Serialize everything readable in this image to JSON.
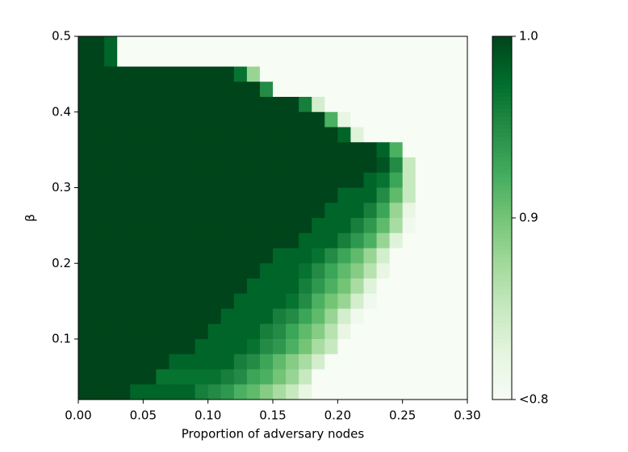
{
  "chart_data": {
    "type": "heatmap",
    "xlabel": "Proportion of adversary nodes",
    "ylabel": "β",
    "xlim": [
      0,
      0.3
    ],
    "ylim": [
      0.02,
      0.5
    ],
    "origin": "upper",
    "xticks": [
      {
        "value": 0,
        "label": "0.00"
      },
      0.05,
      {
        "value": 0.1,
        "label": "0.10"
      },
      0.15,
      {
        "value": 0.2,
        "label": "0.20"
      },
      0.25,
      {
        "value": 0.3,
        "label": "0.30"
      }
    ],
    "yticks": [
      0.1,
      0.2,
      0.3,
      0.4,
      0.5
    ],
    "clim": [
      0.8,
      1.0
    ],
    "cticks": [
      {
        "value": 1.0,
        "label": "1.0"
      },
      0.9,
      {
        "value": 0.8,
        "label": "<0.8"
      }
    ],
    "colormap": [
      "#f7fcf5",
      "#e5f5e0",
      "#c7e9c0",
      "#a1d99b",
      "#74c476",
      "#41ab5d",
      "#238b45",
      "#006d2c",
      "#00441b"
    ],
    "z": [
      [
        1,
        1,
        0.98,
        0.8,
        0.8,
        0.8,
        0.8,
        0.8,
        0.8,
        0.8,
        0.8,
        0.8,
        0.8,
        0.8,
        0.8,
        0.8,
        0.8,
        0.8,
        0.8,
        0.8,
        0.8,
        0.8,
        0.8,
        0.8,
        0.8,
        0.8,
        0.8,
        0.8,
        0.8,
        0.8
      ],
      [
        1,
        1,
        0.98,
        0.8,
        0.8,
        0.8,
        0.8,
        0.8,
        0.8,
        0.8,
        0.8,
        0.8,
        0.8,
        0.8,
        0.8,
        0.8,
        0.8,
        0.8,
        0.8,
        0.8,
        0.8,
        0.8,
        0.8,
        0.8,
        0.8,
        0.8,
        0.8,
        0.8,
        0.8,
        0.8
      ],
      [
        1,
        1,
        1,
        1,
        1,
        1,
        1,
        1,
        1,
        1,
        1,
        1,
        0.97,
        0.88,
        0.8,
        0.8,
        0.8,
        0.8,
        0.8,
        0.8,
        0.8,
        0.8,
        0.8,
        0.8,
        0.8,
        0.8,
        0.8,
        0.8,
        0.8,
        0.8
      ],
      [
        1,
        1,
        1,
        1,
        1,
        1,
        1,
        1,
        1,
        1,
        1,
        1,
        1,
        1,
        0.95,
        0.8,
        0.8,
        0.8,
        0.8,
        0.8,
        0.8,
        0.8,
        0.8,
        0.8,
        0.8,
        0.8,
        0.8,
        0.8,
        0.8,
        0.8
      ],
      [
        1,
        1,
        1,
        1,
        1,
        1,
        1,
        1,
        1,
        1,
        1,
        1,
        1,
        1,
        1,
        1,
        1,
        0.96,
        0.84,
        0.8,
        0.8,
        0.8,
        0.8,
        0.8,
        0.8,
        0.8,
        0.8,
        0.8,
        0.8,
        0.8
      ],
      [
        1,
        1,
        1,
        1,
        1,
        1,
        1,
        1,
        1,
        1,
        1,
        1,
        1,
        1,
        1,
        1,
        1,
        1,
        1,
        0.92,
        0.82,
        0.8,
        0.8,
        0.8,
        0.8,
        0.8,
        0.8,
        0.8,
        0.8,
        0.8
      ],
      [
        1,
        1,
        1,
        1,
        1,
        1,
        1,
        1,
        1,
        1,
        1,
        1,
        1,
        1,
        1,
        1,
        1,
        1,
        1,
        1,
        0.98,
        0.83,
        0.8,
        0.8,
        0.8,
        0.8,
        0.8,
        0.8,
        0.8,
        0.8
      ],
      [
        1,
        1,
        1,
        1,
        1,
        1,
        1,
        1,
        1,
        1,
        1,
        1,
        1,
        1,
        1,
        1,
        1,
        1,
        1,
        1,
        1,
        1,
        1,
        0.98,
        0.92,
        0.8,
        0.8,
        0.8,
        0.8,
        0.8
      ],
      [
        1,
        1,
        1,
        1,
        1,
        1,
        1,
        1,
        1,
        1,
        1,
        1,
        1,
        1,
        1,
        1,
        1,
        1,
        1,
        1,
        1,
        1,
        1,
        0.99,
        0.95,
        0.85,
        0.8,
        0.8,
        0.8,
        0.8
      ],
      [
        1,
        1,
        1,
        1,
        1,
        1,
        1,
        1,
        1,
        1,
        1,
        1,
        1,
        1,
        1,
        1,
        1,
        1,
        1,
        1,
        1,
        1,
        0.98,
        0.97,
        0.93,
        0.85,
        0.8,
        0.8,
        0.8,
        0.8
      ],
      [
        1,
        1,
        1,
        1,
        1,
        1,
        1,
        1,
        1,
        1,
        1,
        1,
        1,
        1,
        1,
        1,
        1,
        1,
        1,
        1,
        0.98,
        0.98,
        0.98,
        0.95,
        0.91,
        0.85,
        0.8,
        0.8,
        0.8,
        0.8
      ],
      [
        1,
        1,
        1,
        1,
        1,
        1,
        1,
        1,
        1,
        1,
        1,
        1,
        1,
        1,
        1,
        1,
        1,
        1,
        1,
        0.98,
        0.98,
        0.98,
        0.96,
        0.93,
        0.88,
        0.82,
        0.8,
        0.8,
        0.8,
        0.8
      ],
      [
        1,
        1,
        1,
        1,
        1,
        1,
        1,
        1,
        1,
        1,
        1,
        1,
        1,
        1,
        1,
        1,
        1,
        1,
        0.98,
        0.98,
        0.98,
        0.96,
        0.94,
        0.91,
        0.87,
        0.81,
        0.8,
        0.8,
        0.8,
        0.8
      ],
      [
        1,
        1,
        1,
        1,
        1,
        1,
        1,
        1,
        1,
        1,
        1,
        1,
        1,
        1,
        1,
        1,
        1,
        0.98,
        0.98,
        0.98,
        0.96,
        0.94,
        0.92,
        0.88,
        0.83,
        0.8,
        0.8,
        0.8,
        0.8,
        0.8
      ],
      [
        1,
        1,
        1,
        1,
        1,
        1,
        1,
        1,
        1,
        1,
        1,
        1,
        1,
        1,
        1,
        0.98,
        0.98,
        0.98,
        0.97,
        0.95,
        0.93,
        0.91,
        0.88,
        0.84,
        0.8,
        0.8,
        0.8,
        0.8,
        0.8,
        0.8
      ],
      [
        1,
        1,
        1,
        1,
        1,
        1,
        1,
        1,
        1,
        1,
        1,
        1,
        1,
        1,
        0.98,
        0.98,
        0.98,
        0.97,
        0.95,
        0.93,
        0.91,
        0.89,
        0.86,
        0.82,
        0.8,
        0.8,
        0.8,
        0.8,
        0.8,
        0.8
      ],
      [
        1,
        1,
        1,
        1,
        1,
        1,
        1,
        1,
        1,
        1,
        1,
        1,
        1,
        0.98,
        0.98,
        0.98,
        0.98,
        0.96,
        0.94,
        0.92,
        0.9,
        0.87,
        0.83,
        0.8,
        0.8,
        0.8,
        0.8,
        0.8,
        0.8,
        0.8
      ],
      [
        1,
        1,
        1,
        1,
        1,
        1,
        1,
        1,
        1,
        1,
        1,
        1,
        0.98,
        0.98,
        0.98,
        0.98,
        0.97,
        0.95,
        0.92,
        0.9,
        0.88,
        0.84,
        0.81,
        0.8,
        0.8,
        0.8,
        0.8,
        0.8,
        0.8,
        0.8
      ],
      [
        1,
        1,
        1,
        1,
        1,
        1,
        1,
        1,
        1,
        1,
        1,
        0.98,
        0.98,
        0.98,
        0.98,
        0.96,
        0.95,
        0.93,
        0.91,
        0.88,
        0.84,
        0.81,
        0.8,
        0.8,
        0.8,
        0.8,
        0.8,
        0.8,
        0.8,
        0.8
      ],
      [
        1,
        1,
        1,
        1,
        1,
        1,
        1,
        1,
        1,
        1,
        0.98,
        0.98,
        0.98,
        0.98,
        0.96,
        0.95,
        0.93,
        0.91,
        0.89,
        0.86,
        0.82,
        0.8,
        0.8,
        0.8,
        0.8,
        0.8,
        0.8,
        0.8,
        0.8,
        0.8
      ],
      [
        1,
        1,
        1,
        1,
        1,
        1,
        1,
        1,
        1,
        0.98,
        0.98,
        0.98,
        0.98,
        0.97,
        0.95,
        0.94,
        0.92,
        0.9,
        0.87,
        0.85,
        0.8,
        0.8,
        0.8,
        0.8,
        0.8,
        0.8,
        0.8,
        0.8,
        0.8,
        0.8
      ],
      [
        1,
        1,
        1,
        1,
        1,
        1,
        1,
        0.98,
        0.98,
        0.98,
        0.98,
        0.98,
        0.96,
        0.95,
        0.93,
        0.91,
        0.89,
        0.87,
        0.84,
        0.8,
        0.8,
        0.8,
        0.8,
        0.8,
        0.8,
        0.8,
        0.8,
        0.8,
        0.8,
        0.8
      ],
      [
        1,
        1,
        1,
        1,
        1,
        1,
        0.97,
        0.97,
        0.97,
        0.97,
        0.97,
        0.96,
        0.95,
        0.93,
        0.92,
        0.9,
        0.88,
        0.85,
        0.8,
        0.8,
        0.8,
        0.8,
        0.8,
        0.8,
        0.8,
        0.8,
        0.8,
        0.8,
        0.8,
        0.8
      ],
      [
        1,
        1,
        1,
        1,
        0.98,
        0.98,
        0.98,
        0.98,
        0.98,
        0.96,
        0.95,
        0.94,
        0.92,
        0.91,
        0.89,
        0.87,
        0.85,
        0.82,
        0.8,
        0.8,
        0.8,
        0.8,
        0.8,
        0.8,
        0.8,
        0.8,
        0.8,
        0.8,
        0.8,
        0.8
      ]
    ]
  }
}
